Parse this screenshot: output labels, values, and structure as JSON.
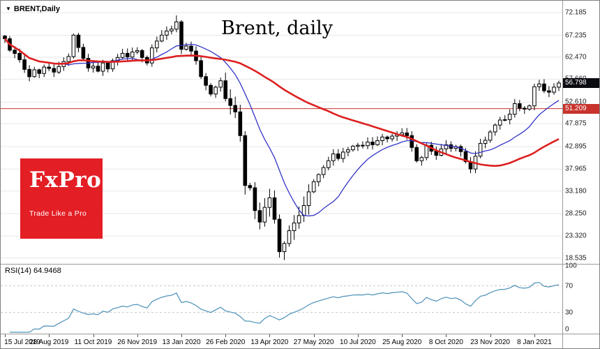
{
  "window": {
    "symbol": "BRENT,Daily",
    "title": "Brent, daily"
  },
  "icons": {
    "symbol_marker": "▼"
  },
  "logo": {
    "name": "FxPro",
    "tagline": "Trade Like a Pro",
    "bg_color": "#e31e24"
  },
  "colors": {
    "background": "#ffffff",
    "grid": "#e7e7e7",
    "panel_border": "#9a9a9a",
    "axis_text": "#1a1a1a",
    "candle_outline": "#000000"
  },
  "price_scale": {
    "ticks": [
      "72.185",
      "67.235",
      "62.470",
      "57.660",
      "52.610",
      "47.875",
      "42.895",
      "37.965",
      "33.180",
      "28.250",
      "23.320",
      "18.535"
    ],
    "current_price": {
      "label": "56.798",
      "value": 56.798,
      "bg_color": "#0b0b12",
      "text_color": "#ffffff"
    },
    "horizontal_line": {
      "label": "51.209",
      "value": 51.209,
      "color": "#c8332d"
    }
  },
  "rsi_panel": {
    "label": "RSI(14) 64.9468",
    "last_value": 64.9468,
    "scale_ticks": [
      "100",
      "70",
      "30",
      "0"
    ],
    "level_values": [
      100,
      70,
      30,
      0
    ],
    "dashed_levels": [
      70,
      30
    ],
    "line_color": "#4a90b8"
  },
  "time_axis": {
    "labels": [
      "15 Jul 2019",
      "28 Aug 2019",
      "11 Oct 2019",
      "26 Nov 2019",
      "13 Jan 2020",
      "26 Feb 2020",
      "13 Apr 2020",
      "27 May 2020",
      "10 Jul 2020",
      "25 Aug 2020",
      "8 Oct 2020",
      "23 Nov 2020",
      "8 Jan 2021"
    ],
    "indices": [
      0,
      9,
      18,
      27,
      36,
      45,
      54,
      63,
      72,
      81,
      90,
      99,
      108
    ]
  },
  "chart_data": {
    "type": "candlestick",
    "title": "Brent, daily",
    "symbol": "BRENT",
    "timeframe": "Daily",
    "ylim": [
      17.4,
      73.6
    ],
    "x_range": [
      "15 Jul 2019",
      "8 Jan 2021"
    ],
    "closes": [
      66.5,
      64.0,
      63.3,
      61.9,
      59.8,
      58.2,
      59.7,
      58.9,
      60.3,
      60.0,
      59.2,
      60.4,
      61.5,
      62.6,
      67.3,
      64.6,
      62.2,
      60.1,
      60.5,
      59.4,
      61.2,
      59.9,
      61.7,
      62.4,
      63.3,
      62.5,
      63.6,
      63.9,
      62.4,
      61.2,
      64.5,
      66.0,
      67.3,
      68.2,
      68.6,
      70.2,
      64.2,
      64.9,
      63.8,
      61.7,
      58.2,
      56.3,
      54.4,
      55.9,
      57.3,
      53.4,
      51.9,
      50.5,
      45.3,
      34.4,
      33.9,
      28.9,
      26.4,
      29.6,
      31.7,
      27.0,
      19.9,
      21.7,
      24.5,
      26.2,
      27.8,
      30.0,
      33.0,
      35.2,
      36.8,
      38.3,
      39.8,
      41.3,
      40.3,
      41.7,
      42.2,
      43.0,
      43.2,
      43.1,
      43.9,
      43.3,
      44.2,
      45.0,
      44.6,
      45.2,
      45.5,
      45.9,
      45.3,
      42.7,
      39.8,
      40.5,
      43.2,
      41.9,
      41.0,
      42.4,
      43.3,
      42.5,
      42.9,
      41.8,
      39.6,
      38.0,
      40.8,
      43.6,
      44.3,
      46.1,
      47.6,
      48.7,
      48.8,
      50.0,
      52.3,
      51.3,
      51.1,
      51.8,
      55.99,
      56.6,
      55.1,
      54.8,
      55.9,
      56.8
    ],
    "extremes": {
      "high": 71.6,
      "low": 18.62,
      "last": 56.798
    },
    "candle_up_color": "#ffffff",
    "candle_down_color": "#000000",
    "series": [
      {
        "name": "MA fast (blue)",
        "type": "moving_average",
        "window_points": 13,
        "color": "#3434c8"
      },
      {
        "name": "MA slow (red)",
        "type": "moving_average",
        "window_points": 53,
        "color": "#dd1f1f"
      }
    ]
  }
}
